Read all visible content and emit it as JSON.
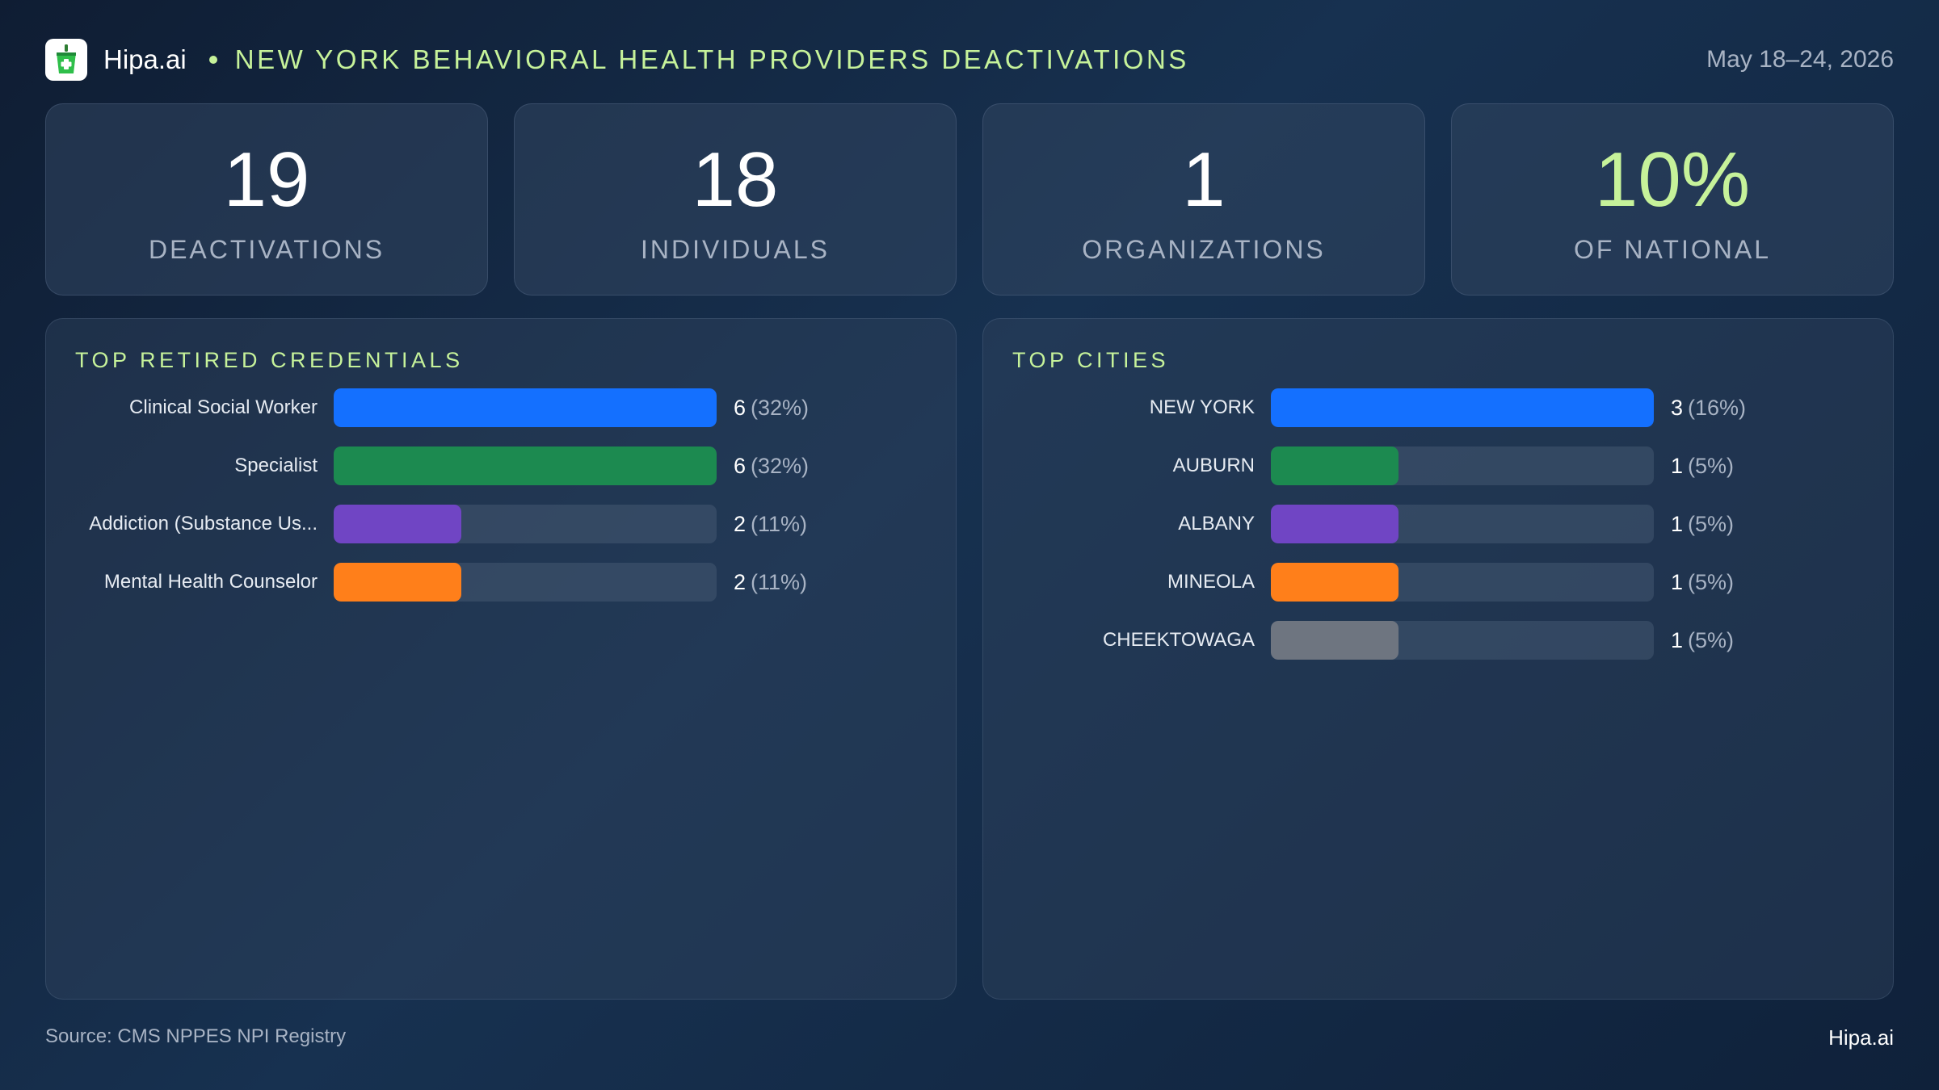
{
  "header": {
    "brand": "Hipa.ai",
    "title": "NEW YORK BEHAVIORAL HEALTH PROVIDERS DEACTIVATIONS",
    "date_range": "May 18–24, 2026",
    "accent_color": "#c6f29a"
  },
  "kpis": [
    {
      "value": "19",
      "label": "DEACTIVATIONS",
      "accent": false
    },
    {
      "value": "18",
      "label": "INDIVIDUALS",
      "accent": false
    },
    {
      "value": "1",
      "label": "ORGANIZATIONS",
      "accent": false
    },
    {
      "value": "10%",
      "label": "OF NATIONAL",
      "accent": true
    }
  ],
  "chart_data": [
    {
      "type": "bar",
      "orientation": "horizontal",
      "title": "TOP RETIRED CREDENTIALS",
      "categories": [
        "Clinical Social Worker",
        "Specialist",
        "Addiction (Substance Us...",
        "Mental Health Counselor"
      ],
      "values": [
        6,
        6,
        2,
        2
      ],
      "percent_labels": [
        "(32%)",
        "(32%)",
        "(11%)",
        "(11%)"
      ],
      "colors": [
        "#1470ff",
        "#1c8a50",
        "#7045c4",
        "#ff7f1a"
      ],
      "xlim": [
        0,
        6
      ]
    },
    {
      "type": "bar",
      "orientation": "horizontal",
      "title": "TOP CITIES",
      "categories": [
        "NEW YORK",
        "AUBURN",
        "ALBANY",
        "MINEOLA",
        "CHEEKTOWAGA"
      ],
      "values": [
        3,
        1,
        1,
        1,
        1
      ],
      "percent_labels": [
        "(16%)",
        "(5%)",
        "(5%)",
        "(5%)",
        "(5%)"
      ],
      "colors": [
        "#1470ff",
        "#1c8a50",
        "#7045c4",
        "#ff7f1a",
        "#6e7580"
      ],
      "xlim": [
        0,
        3
      ]
    }
  ],
  "footer": {
    "source": "Source: CMS NPPES NPI Registry",
    "brand": "Hipa.ai"
  }
}
